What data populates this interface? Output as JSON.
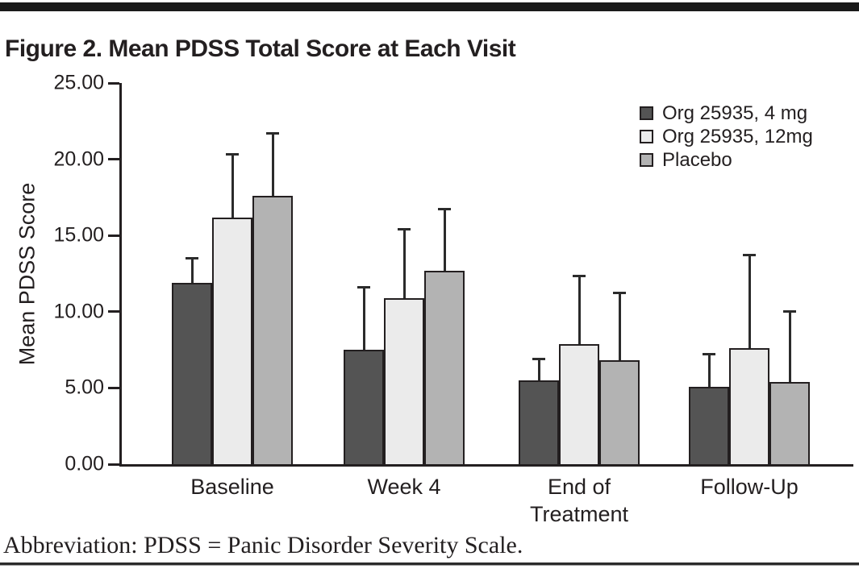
{
  "title": "Figure 2. Mean PDSS Total Score at Each Visit",
  "footnote": "Abbreviation: PDSS = Panic Disorder Severity Scale.",
  "colors": {
    "org4mg_bar": "#545454",
    "org12mg_bar": "#EBEBEB",
    "placebo_bar": "#B3B3B3",
    "bar_border": "#231f20",
    "rule": "#1a1a1a"
  },
  "chart_data": {
    "type": "bar",
    "title": "Figure 2. Mean PDSS Total Score at Each Visit",
    "xlabel": "",
    "ylabel": "Mean PDSS Score",
    "ylim": [
      0,
      25
    ],
    "ytick_values": [
      0,
      5,
      10,
      15,
      20,
      25
    ],
    "ytick_labels": [
      "0.00",
      "5.00",
      "10.00",
      "15.00",
      "20.00",
      "25.00"
    ],
    "categories": [
      "Baseline",
      "Week 4",
      "End of\nTreatment",
      "Follow-Up"
    ],
    "grid": false,
    "legend_position": "top-right",
    "error_bars": "upper-only",
    "series": [
      {
        "name": "Org 25935, 4 mg",
        "color": "#545454",
        "values": [
          11.9,
          7.5,
          5.5,
          5.1
        ],
        "upper_errors": [
          1.7,
          4.2,
          1.5,
          2.2
        ]
      },
      {
        "name": "Org 25935, 12mg",
        "color": "#EBEBEB",
        "values": [
          16.2,
          10.9,
          7.9,
          7.6
        ],
        "upper_errors": [
          4.2,
          4.6,
          4.5,
          6.2
        ]
      },
      {
        "name": "Placebo",
        "color": "#B3B3B3",
        "values": [
          17.6,
          12.7,
          6.8,
          5.4
        ],
        "upper_errors": [
          4.2,
          4.1,
          4.5,
          4.7
        ]
      }
    ]
  }
}
